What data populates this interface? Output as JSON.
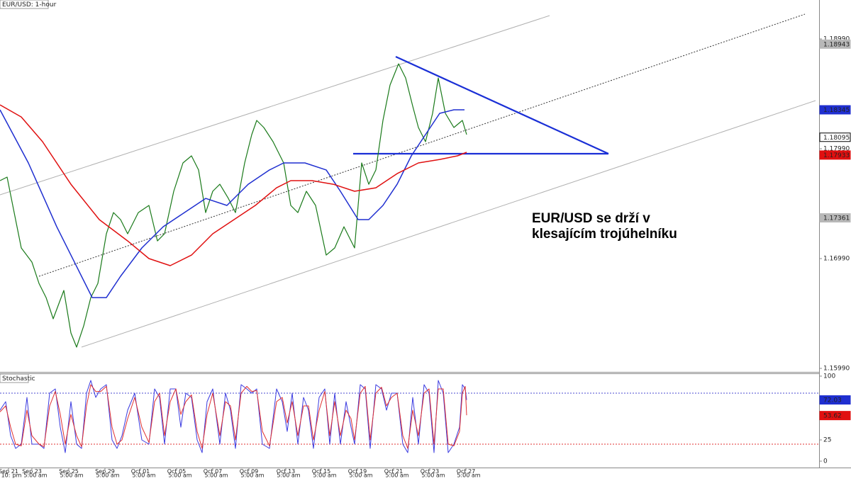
{
  "chart_data": [
    {
      "type": "line",
      "title": "EUR/USD: 1-hour",
      "annotation": [
        "EUR/USD se drží v",
        "klesajícím trojúhelníku"
      ],
      "xlim": [
        0,
        1155
      ],
      "ylim": [
        1.15958,
        1.19345
      ],
      "yticks": [
        {
          "value": 1.1599,
          "label": "1.15990"
        },
        {
          "value": 1.1699,
          "label": "1.16990"
        },
        {
          "value": 1.1799,
          "label": "1.17990"
        },
        {
          "value": 1.1899,
          "label": "1.18990"
        }
      ],
      "xticks": [
        {
          "value": 12,
          "label": "Sep 21"
        },
        {
          "value": 45,
          "label": "Sep 23"
        },
        {
          "value": 97,
          "label": "Sep 25"
        },
        {
          "value": 148,
          "label": "Sep 29"
        },
        {
          "value": 198,
          "label": "Oct 01"
        },
        {
          "value": 249,
          "label": "Oct 05"
        },
        {
          "value": 300,
          "label": "Oct 07"
        },
        {
          "value": 351,
          "label": "Oct 09"
        },
        {
          "value": 403,
          "label": "Oct 13"
        },
        {
          "value": 453,
          "label": "Oct 15"
        },
        {
          "value": 504,
          "label": "Oct 19"
        },
        {
          "value": 555,
          "label": "Oct 21"
        },
        {
          "value": 606,
          "label": "Oct 23"
        },
        {
          "value": 657,
          "label": "Oct 27"
        }
      ],
      "xticks_time": [
        {
          "value": 8,
          "label": "10:"
        },
        {
          "value": 24,
          "label": "pm"
        },
        {
          "value": 50,
          "label": "5:00 am"
        },
        {
          "value": 101,
          "label": "5:00 am"
        },
        {
          "value": 152,
          "label": "5:00 am"
        },
        {
          "value": 203,
          "label": "5:00 am"
        },
        {
          "value": 254,
          "label": "5:00 am"
        },
        {
          "value": 305,
          "label": "5:00 am"
        },
        {
          "value": 356,
          "label": "5:00 am"
        },
        {
          "value": 407,
          "label": "5:00 am"
        },
        {
          "value": 458,
          "label": "5:00 am"
        },
        {
          "value": 509,
          "label": "5:00 am"
        },
        {
          "value": 560,
          "label": "5:00 am"
        },
        {
          "value": 611,
          "label": "5:00 am"
        },
        {
          "value": 661,
          "label": "5:00 am"
        }
      ],
      "series": [
        {
          "color": "#1a7a1a",
          "width": 1.2,
          "x": [
            0,
            10,
            20,
            30,
            45,
            55,
            65,
            75,
            90,
            100,
            108,
            118,
            128,
            138,
            150,
            160,
            170,
            180,
            195,
            210,
            222,
            232,
            245,
            258,
            270,
            280,
            290,
            300,
            310,
            322,
            332,
            345,
            355,
            362,
            372,
            385,
            400,
            410,
            420,
            432,
            445,
            460,
            472,
            485,
            500,
            510,
            520,
            530,
            540,
            550,
            562,
            572,
            582,
            590,
            600,
            610,
            618,
            628,
            640,
            652,
            658
          ],
          "values": [
            1.177,
            1.17732,
            1.17409,
            1.17087,
            1.16958,
            1.16764,
            1.16635,
            1.16442,
            1.167,
            1.16313,
            1.16184,
            1.16377,
            1.16635,
            1.16764,
            1.17216,
            1.17409,
            1.17345,
            1.17216,
            1.17409,
            1.17474,
            1.17151,
            1.17216,
            1.17603,
            1.17861,
            1.17926,
            1.17797,
            1.17409,
            1.17603,
            1.17667,
            1.17538,
            1.17409,
            1.17861,
            1.18119,
            1.18248,
            1.18184,
            1.18055,
            1.17861,
            1.17474,
            1.17409,
            1.17603,
            1.17474,
            1.17022,
            1.17087,
            1.1728,
            1.17087,
            1.17861,
            1.17667,
            1.17797,
            1.18248,
            1.18571,
            1.18764,
            1.18635,
            1.18377,
            1.18184,
            1.18055,
            1.18313,
            1.18635,
            1.18313,
            1.18184,
            1.18248,
            1.18119
          ]
        },
        {
          "color": "#1f2fd0",
          "width": 1.5,
          "x": [
            0,
            40,
            80,
            110,
            130,
            150,
            170,
            200,
            230,
            260,
            290,
            320,
            350,
            380,
            400,
            430,
            460,
            480,
            505,
            520,
            540,
            560,
            580,
            600,
            620,
            640,
            655
          ],
          "values": [
            1.18345,
            1.17861,
            1.1728,
            1.16893,
            1.16635,
            1.16635,
            1.16829,
            1.17087,
            1.1728,
            1.17409,
            1.17538,
            1.17474,
            1.17667,
            1.17797,
            1.17861,
            1.17861,
            1.17797,
            1.17603,
            1.17345,
            1.17345,
            1.17474,
            1.17667,
            1.17926,
            1.18119,
            1.18313,
            1.18345,
            1.18345
          ]
        },
        {
          "color": "#e01010",
          "width": 1.5,
          "x": [
            0,
            30,
            60,
            100,
            140,
            180,
            210,
            240,
            270,
            300,
            330,
            360,
            390,
            410,
            440,
            470,
            500,
            530,
            560,
            590,
            620,
            645,
            658
          ],
          "values": [
            1.1839,
            1.1828,
            1.18055,
            1.17667,
            1.17345,
            1.17151,
            1.1699,
            1.16926,
            1.17022,
            1.17216,
            1.17345,
            1.17474,
            1.17635,
            1.177,
            1.177,
            1.17667,
            1.17603,
            1.17635,
            1.17764,
            1.17861,
            1.17893,
            1.17926,
            1.17958
          ]
        }
      ],
      "trendlines": [
        {
          "x": [
            0,
            775
          ],
          "values": [
            1.17571,
            1.19203
          ],
          "color": "#b0b0b0",
          "width": 1,
          "dashed": false
        },
        {
          "x": [
            55,
            1135
          ],
          "values": [
            1.16829,
            1.19216
          ],
          "color": "#333333",
          "width": 1,
          "dashed": true
        },
        {
          "x": [
            115,
            1150
          ],
          "values": [
            1.16184,
            1.18429
          ],
          "color": "#b0b0b0",
          "width": 1,
          "dashed": false
        },
        {
          "x": [
            558,
            858
          ],
          "values": [
            1.18829,
            1.17945
          ],
          "color": "#1a2fd6",
          "width": 2.2,
          "dashed": false
        },
        {
          "x": [
            498,
            858
          ],
          "values": [
            1.17945,
            1.17945
          ],
          "color": "#1a2fd6",
          "width": 2.2,
          "dashed": false
        }
      ],
      "price_labels": [
        {
          "value": 1.18943,
          "color": "#b8b8b8",
          "text_color": "#ffffff"
        },
        {
          "value": 1.18345,
          "color": "#1f2fd0",
          "text_color": "#ffffff"
        },
        {
          "value": 1.18095,
          "color": "#ffffff",
          "text_color": "#000000"
        },
        {
          "value": 1.17933,
          "color": "#e01010",
          "text_color": "#ffffff"
        },
        {
          "value": 1.17361,
          "color": "#b8b8b8",
          "text_color": "#ffffff"
        }
      ]
    },
    {
      "type": "line",
      "title": "Stochastic",
      "xlim": [
        0,
        1155
      ],
      "ylim": [
        -7.5,
        103.3
      ],
      "yticks": [
        0,
        25,
        100
      ],
      "levels": [
        {
          "value": 80,
          "color": "#4a4ad0"
        },
        {
          "value": 20,
          "color": "#e03030"
        }
      ],
      "series": [
        {
          "color": "#3a3ae0",
          "width": 1,
          "x": [
            0,
            8,
            15,
            22,
            30,
            38,
            45,
            55,
            62,
            70,
            78,
            85,
            92,
            100,
            108,
            115,
            122,
            128,
            135,
            142,
            150,
            158,
            165,
            172,
            180,
            190,
            200,
            210,
            218,
            225,
            232,
            240,
            248,
            255,
            262,
            270,
            278,
            285,
            292,
            300,
            310,
            318,
            325,
            332,
            340,
            348,
            355,
            362,
            370,
            380,
            390,
            398,
            405,
            412,
            420,
            428,
            435,
            442,
            450,
            458,
            465,
            472,
            480,
            488,
            495,
            500,
            508,
            515,
            522,
            530,
            538,
            545,
            552,
            560,
            568,
            575,
            582,
            590,
            598,
            605,
            612,
            618,
            625,
            632,
            640,
            648,
            652,
            656,
            658
          ],
          "values": [
            60,
            70,
            30,
            15,
            20,
            75,
            20,
            20,
            15,
            80,
            85,
            40,
            10,
            70,
            20,
            15,
            80,
            95,
            75,
            85,
            90,
            25,
            15,
            30,
            60,
            80,
            25,
            20,
            85,
            75,
            20,
            85,
            85,
            40,
            80,
            75,
            25,
            10,
            70,
            85,
            20,
            80,
            60,
            15,
            90,
            85,
            80,
            85,
            20,
            15,
            85,
            70,
            35,
            80,
            20,
            75,
            60,
            15,
            75,
            85,
            20,
            80,
            20,
            70,
            40,
            20,
            90,
            85,
            15,
            90,
            85,
            60,
            80,
            80,
            20,
            10,
            75,
            20,
            90,
            80,
            10,
            95,
            80,
            10,
            20,
            40,
            90,
            85,
            72
          ]
        },
        {
          "color": "#e03030",
          "width": 1,
          "x": [
            0,
            8,
            15,
            22,
            30,
            38,
            45,
            55,
            62,
            70,
            78,
            85,
            92,
            100,
            108,
            115,
            122,
            128,
            135,
            142,
            150,
            158,
            165,
            172,
            180,
            190,
            200,
            210,
            218,
            225,
            232,
            240,
            248,
            255,
            262,
            270,
            278,
            285,
            292,
            300,
            310,
            318,
            325,
            332,
            340,
            348,
            355,
            362,
            370,
            380,
            390,
            398,
            405,
            412,
            420,
            428,
            435,
            442,
            450,
            458,
            465,
            472,
            480,
            488,
            495,
            500,
            508,
            515,
            522,
            530,
            538,
            545,
            552,
            560,
            568,
            575,
            582,
            590,
            598,
            605,
            612,
            618,
            625,
            632,
            640,
            648,
            652,
            656,
            658
          ],
          "values": [
            58,
            65,
            40,
            20,
            18,
            60,
            30,
            20,
            17,
            65,
            82,
            55,
            20,
            55,
            30,
            17,
            65,
            90,
            82,
            82,
            88,
            40,
            20,
            25,
            50,
            75,
            40,
            22,
            70,
            80,
            30,
            70,
            85,
            55,
            70,
            78,
            35,
            15,
            55,
            80,
            30,
            70,
            65,
            25,
            80,
            88,
            82,
            83,
            35,
            18,
            70,
            75,
            45,
            70,
            30,
            65,
            65,
            25,
            60,
            82,
            30,
            70,
            30,
            60,
            50,
            25,
            80,
            88,
            25,
            80,
            87,
            65,
            75,
            80,
            30,
            15,
            60,
            30,
            80,
            85,
            20,
            85,
            85,
            20,
            18,
            35,
            80,
            88,
            54
          ]
        }
      ],
      "price_labels": [
        {
          "value": 72.03,
          "color": "#1f2fd0",
          "text_color": "#ffffff"
        },
        {
          "value": 53.62,
          "color": "#e01010",
          "text_color": "#ffffff"
        }
      ]
    }
  ]
}
